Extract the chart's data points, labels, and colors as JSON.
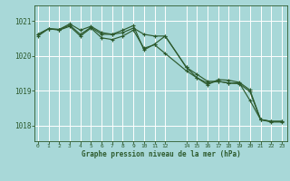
{
  "xlabel": "Graphe pression niveau de la mer (hPa)",
  "bg_color": "#a8d8d8",
  "plot_bg_color": "#a8d8d8",
  "grid_color": "#c8e8e8",
  "line_color": "#2d5a2d",
  "ylim": [
    1017.55,
    1021.45
  ],
  "yticks": [
    1018,
    1019,
    1020,
    1021
  ],
  "xticks": [
    0,
    1,
    2,
    3,
    4,
    5,
    6,
    7,
    8,
    9,
    10,
    11,
    12,
    14,
    15,
    16,
    17,
    18,
    19,
    20,
    21,
    22,
    23
  ],
  "xlim": [
    -0.3,
    23.5
  ],
  "series1_x": [
    0,
    1,
    2,
    3,
    4,
    5,
    6,
    7,
    8,
    9,
    10,
    11,
    12,
    14,
    15,
    16,
    17,
    18,
    19,
    20,
    21,
    22,
    23
  ],
  "series1_y": [
    1020.62,
    1020.78,
    1020.76,
    1020.88,
    1020.62,
    1020.82,
    1020.62,
    1020.62,
    1020.67,
    1020.8,
    1020.62,
    1020.57,
    1020.57,
    1019.67,
    1019.47,
    1019.27,
    1019.27,
    1019.22,
    1019.22,
    1018.72,
    1018.17,
    1018.12,
    1018.12
  ],
  "series2_x": [
    0,
    1,
    2,
    3,
    4,
    5,
    6,
    7,
    8,
    9,
    10,
    11,
    12,
    14,
    15,
    16,
    17,
    18,
    19,
    20,
    21,
    22,
    23
  ],
  "series2_y": [
    1020.62,
    1020.78,
    1020.76,
    1020.92,
    1020.74,
    1020.85,
    1020.67,
    1020.62,
    1020.74,
    1020.87,
    1020.17,
    1020.34,
    1020.57,
    1019.67,
    1019.37,
    1019.17,
    1019.32,
    1019.3,
    1019.24,
    1019.02,
    1018.17,
    1018.12,
    1018.12
  ],
  "series3_x": [
    0,
    1,
    2,
    3,
    4,
    5,
    6,
    7,
    8,
    9,
    10,
    11,
    12,
    14,
    15,
    16,
    17,
    18,
    19,
    20,
    21,
    22,
    23
  ],
  "series3_y": [
    1020.57,
    1020.78,
    1020.74,
    1020.85,
    1020.57,
    1020.8,
    1020.52,
    1020.47,
    1020.57,
    1020.74,
    1020.22,
    1020.32,
    1020.07,
    1019.57,
    1019.37,
    1019.22,
    1019.27,
    1019.22,
    1019.2,
    1018.97,
    1018.17,
    1018.1,
    1018.1
  ]
}
